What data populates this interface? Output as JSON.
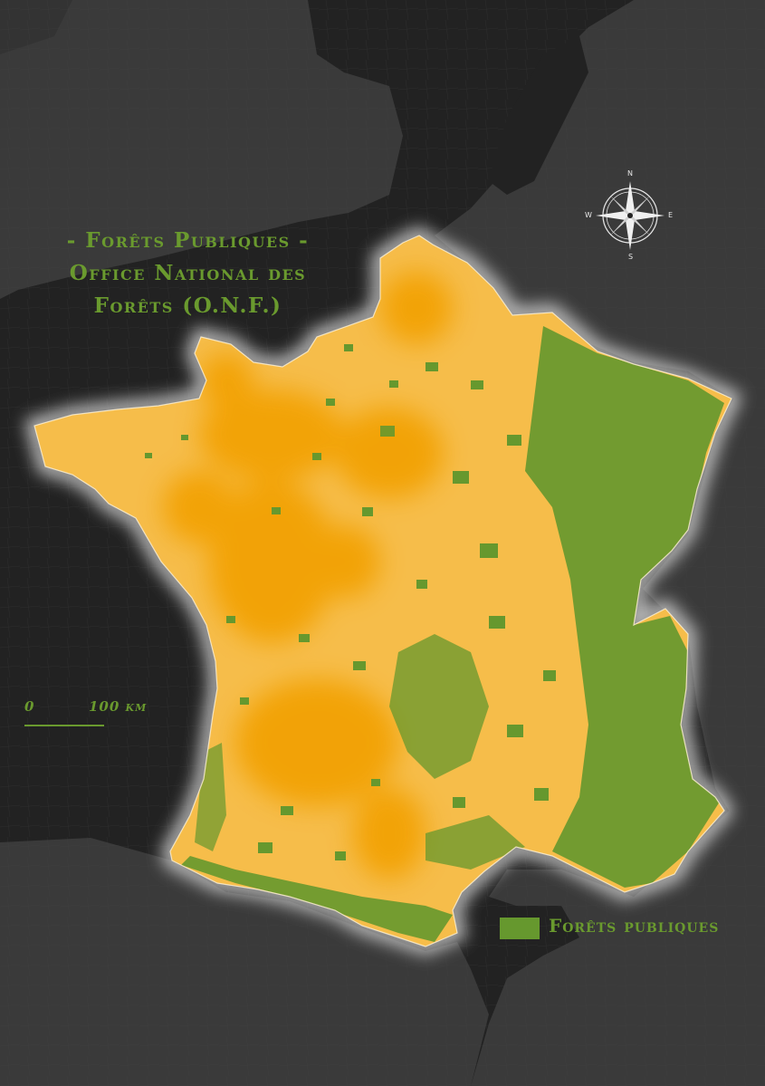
{
  "title": {
    "line1": "- Forêts Publiques -",
    "line2": "Office National des",
    "line3": "Forêts (O.N.F.)"
  },
  "scale": {
    "start_label": "0",
    "end_label": "100 km"
  },
  "legend": {
    "label": "Forêts publiques",
    "color": "#66982e"
  },
  "compass": {
    "north": "N",
    "south": "S",
    "east": "E",
    "west": "W"
  },
  "colors": {
    "background": "#222222",
    "land_neighbors": "#3a3a3a",
    "france_base": "#f6bd4a",
    "density_hotspot": "#f2a000",
    "forest": "#66982e",
    "glow": "#d9d9d9",
    "text": "#6a9a2e"
  }
}
